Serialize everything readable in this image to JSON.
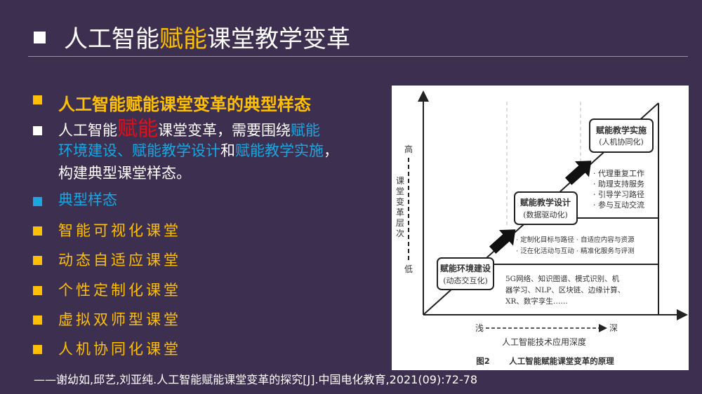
{
  "title": {
    "prefix": "人工智能",
    "highlight": "赋能",
    "suffix": "课堂教学变革"
  },
  "heading": "人工智能赋能课堂变革的典型样态",
  "paragraph": {
    "p1": "人工智能",
    "p2": "赋能",
    "p3": "课堂变革，需要围绕",
    "p4": "赋能",
    "p5": "环境建设、赋能教学设计",
    "p6": "和",
    "p7": "赋能教学实施",
    "p8": "，",
    "p9": "构建典型课堂样态。"
  },
  "subheading": "典型样态",
  "items": [
    "智能可视化课堂",
    "动态自适应课堂",
    "个性定制化课堂",
    "虚拟双师型课堂",
    "人机协同化课堂"
  ],
  "figure": {
    "y_high": "高",
    "y_low": "低",
    "y_label": [
      "课",
      "堂",
      "变",
      "革",
      "层",
      "次"
    ],
    "x_shallow": "浅",
    "x_deep": "深",
    "x_label": "人工智能技术应用深度",
    "caption_num": "图2",
    "caption": "人工智能赋能课堂变革的原理",
    "stage1": {
      "title": "赋能环境建设",
      "sub": "(动态交互化)",
      "lines": [
        "5G网络、知识图谱、模式识别、机",
        "器学习、NLP、区块链、边缘计算、",
        "XR、数字孪生……"
      ]
    },
    "stage2": {
      "title": "赋能教学设计",
      "sub": "(数据驱动化)",
      "lines": [
        "· 定制化目标与路径 · 自适应内容与资源",
        "· 泛在化活动与互动 · 精准化服务与评测"
      ]
    },
    "stage3": {
      "title": "赋能教学实施",
      "sub": "(人机协同化)",
      "lines": [
        "· 代理重复工作",
        "· 助理支持服务",
        "· 引导学习路径",
        "· 参与互动交流"
      ]
    }
  },
  "citation": "——谢幼如,邱艺,刘亚纯.人工智能赋能课堂变革的探究[J].中国电化教育,2021(09):72-78",
  "colors": {
    "background": "#3d2f4f",
    "accent_yellow": "#ffc000",
    "accent_blue": "#1aa6e0",
    "accent_red": "#e0101a"
  }
}
